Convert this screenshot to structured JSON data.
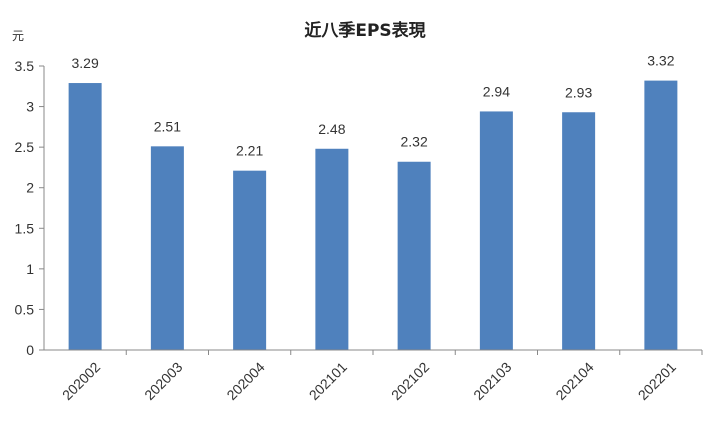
{
  "chart_data": {
    "type": "bar",
    "title": "近八季EPS表現",
    "ylabel": "元",
    "xlabel": "",
    "categories": [
      "202002",
      "202003",
      "202004",
      "202101",
      "202102",
      "202103",
      "202104",
      "202201"
    ],
    "values": [
      3.29,
      2.51,
      2.21,
      2.48,
      2.32,
      2.94,
      2.93,
      3.32
    ],
    "data_labels": [
      "3.29",
      "2.51",
      "2.21",
      "2.48",
      "2.32",
      "2.94",
      "2.93",
      "3.32"
    ],
    "ylim": [
      0,
      3.5
    ],
    "yticks": [
      "0",
      "0.5",
      "1",
      "1.5",
      "2",
      "2.5",
      "3",
      "3.5"
    ],
    "grid": false,
    "legend": "none",
    "bar_color": "#4f81bd"
  }
}
